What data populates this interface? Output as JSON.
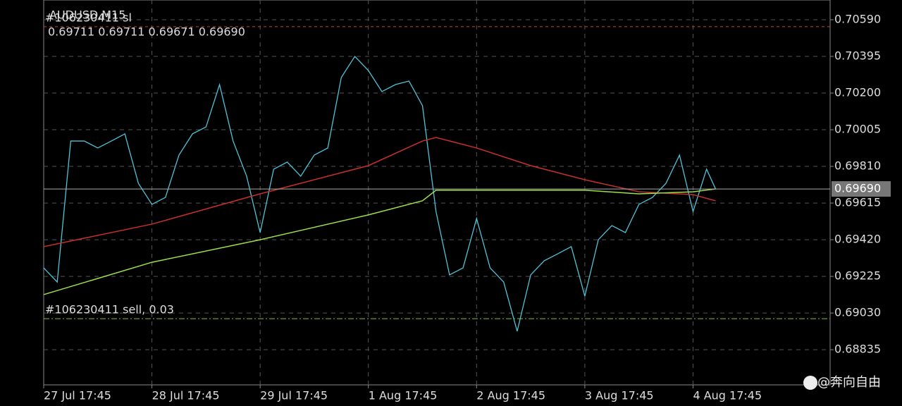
{
  "chart_data": {
    "type": "line",
    "title": "AUDUSD,M15",
    "ohlc": "0.69711 0.69711 0.69671 0.69690",
    "xlim": [
      0,
      174.4
    ],
    "ylim": [
      0.68648,
      0.70695
    ],
    "xticks": [
      {
        "value": 0,
        "label": "27 Jul 17:45"
      },
      {
        "value": 24,
        "label": "28 Jul 17:45"
      },
      {
        "value": 48,
        "label": "29 Jul 17:45"
      },
      {
        "value": 72,
        "label": "1 Aug 17:45"
      },
      {
        "value": 96,
        "label": "2 Aug 17:45"
      },
      {
        "value": 120,
        "label": "3 Aug 17:45"
      },
      {
        "value": 144,
        "label": "4 Aug 17:45"
      }
    ],
    "yticks": [
      {
        "value": 0.7059,
        "label": "0.70590"
      },
      0.70395,
      {
        "value": 0.702,
        "label": "0.70200"
      },
      0.70005,
      {
        "value": 0.6981,
        "label": "0.69810"
      },
      0.69615,
      {
        "value": 0.6942,
        "label": "0.69420"
      },
      0.69225,
      {
        "value": 0.6903,
        "label": "0.69030"
      },
      0.68835
    ],
    "grid": true,
    "series": [
      {
        "color": "#4fc3d9",
        "x": [
          0,
          3,
          6,
          9,
          12,
          15,
          18,
          21,
          24,
          27,
          30,
          33,
          36,
          39,
          42,
          45,
          48,
          51,
          54,
          57,
          60,
          63,
          66,
          69,
          72,
          75,
          78,
          81,
          84,
          87,
          90,
          93,
          96,
          99,
          102,
          105,
          108,
          111,
          114,
          117,
          120,
          123,
          126,
          129,
          132,
          135,
          138,
          141,
          144,
          147,
          149
        ],
        "values": [
          0.6927,
          0.69195,
          0.69945,
          0.69945,
          0.69908,
          0.69945,
          0.69983,
          0.6972,
          0.69608,
          0.69645,
          0.6987,
          0.69983,
          0.7002,
          0.70245,
          0.69945,
          0.69758,
          0.69458,
          0.69795,
          0.69833,
          0.69758,
          0.6987,
          0.69908,
          0.70283,
          0.70395,
          0.7032,
          0.70208,
          0.70245,
          0.70264,
          0.70133,
          0.6957,
          0.69233,
          0.6927,
          0.69533,
          0.6927,
          0.69195,
          0.68933,
          0.69233,
          0.69308,
          0.69345,
          0.69383,
          0.6912,
          0.6942,
          0.69495,
          0.69458,
          0.69608,
          0.69645,
          0.6972,
          0.6987,
          0.6957,
          0.69795,
          0.6969
        ]
      },
      {
        "color": "#c8302c",
        "x": [
          0,
          24,
          48,
          72,
          84,
          87,
          96,
          108,
          120,
          132,
          144,
          149
        ],
        "values": [
          0.69383,
          0.69503,
          0.69664,
          0.69814,
          0.69945,
          0.69964,
          0.69908,
          0.69814,
          0.69739,
          0.69675,
          0.6966,
          0.69627
        ]
      },
      {
        "color": "#9be04a",
        "x": [
          0,
          24,
          48,
          72,
          84,
          87,
          96,
          108,
          120,
          132,
          144,
          149
        ],
        "values": [
          0.69128,
          0.693,
          0.6942,
          0.69552,
          0.69627,
          0.69683,
          0.69683,
          0.69683,
          0.69683,
          0.69664,
          0.69675,
          0.6969
        ]
      }
    ],
    "levels": [
      {
        "label": "#106230411 sl",
        "value": 0.70553,
        "color": "#c8402c"
      },
      {
        "label": "#106230411 sell, 0.03",
        "value": 0.69,
        "color": "#7fbf3f"
      }
    ],
    "current_price": {
      "value": 0.6969,
      "label": "0.69690"
    }
  },
  "watermark": "@奔向自由"
}
